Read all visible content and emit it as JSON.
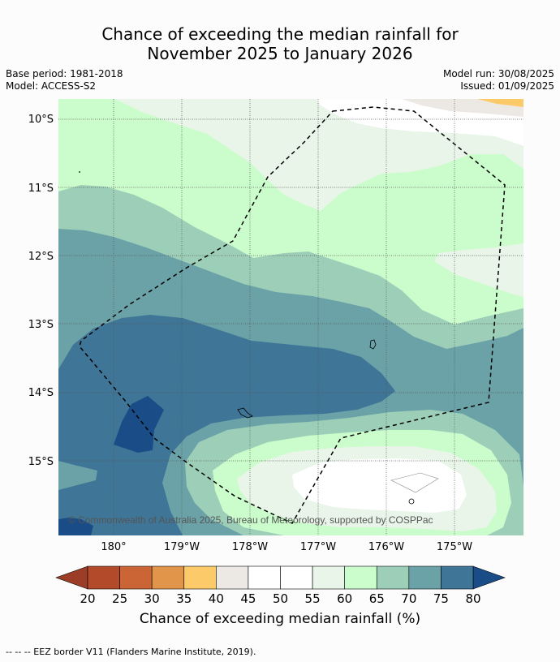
{
  "header": {
    "title_line1": "Chance of exceeding the median rainfall for",
    "title_line2": "November 2025 to January 2026",
    "base_period": "Base period: 1981-2018",
    "model": "Model: ACCESS-S2",
    "model_run": "Model run: 30/08/2025",
    "issued": "Issued: 01/09/2025"
  },
  "map": {
    "lat_labels": [
      "10°S",
      "11°S",
      "12°S",
      "13°S",
      "14°S",
      "15°S"
    ],
    "lon_labels": [
      "180°",
      "179°W",
      "178°W",
      "177°W",
      "176°W",
      "175°W"
    ],
    "copyright": "© Commonwealth of Australia 2025, Bureau of Meteorology, supported by COSPPac"
  },
  "colorbar": {
    "ticks": [
      "20",
      "25",
      "30",
      "35",
      "40",
      "45",
      "50",
      "55",
      "60",
      "65",
      "70",
      "75",
      "80"
    ],
    "colors": [
      "#b34a29",
      "#cc6535",
      "#e0954a",
      "#fdca6a",
      "#ece9e4",
      "#ffffff",
      "#ffffff",
      "#e8f5e8",
      "#cbfccb",
      "#9dcfb8",
      "#6ba2a8",
      "#3f7596"
    ],
    "low_color": "#9c3d28",
    "high_color": "#1a4c88",
    "label": "Chance of exceeding median rainfall (%)"
  },
  "footnote": "--  --  -- EEZ border V11 (Flanders Marine Institute, 2019)."
}
